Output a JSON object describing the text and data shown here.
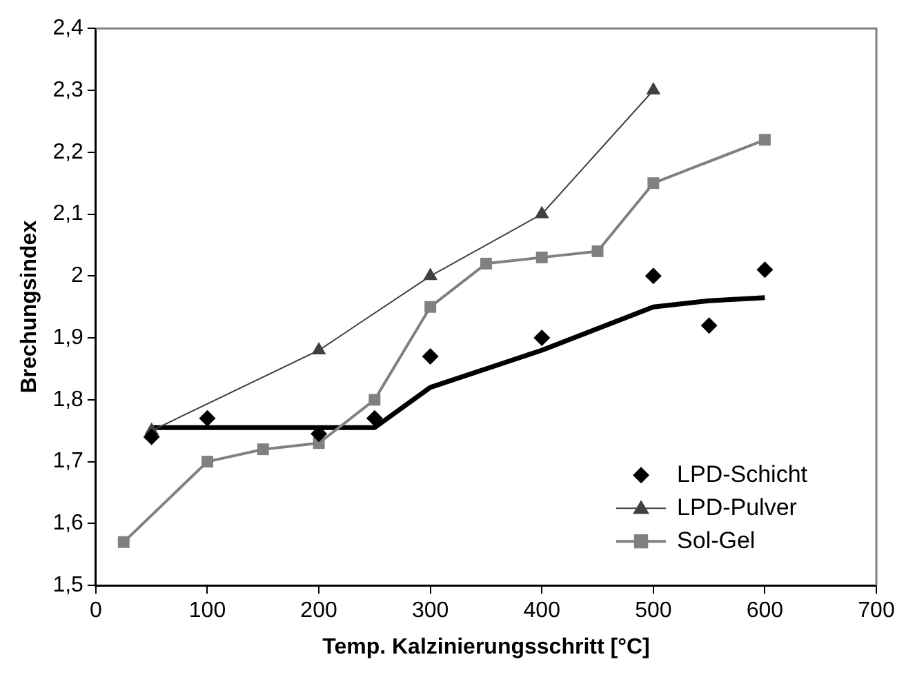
{
  "chart_data": {
    "type": "line",
    "xlabel": "Temp. Kalzinierungsschritt [°C]",
    "ylabel": "Brechungsindex",
    "xlim": [
      0,
      700
    ],
    "xticks": [
      0,
      100,
      200,
      300,
      400,
      500,
      600,
      700
    ],
    "ylim": [
      1.5,
      2.4
    ],
    "yticks": [
      {
        "value": 1.5,
        "label": "1,5"
      },
      {
        "value": 1.6,
        "label": "1,6"
      },
      {
        "value": 1.7,
        "label": "1,7"
      },
      {
        "value": 1.8,
        "label": "1,8"
      },
      {
        "value": 1.9,
        "label": "1,9"
      },
      2,
      {
        "value": 2.1,
        "label": "2,1"
      },
      {
        "value": 2.2,
        "label": "2,2"
      },
      {
        "value": 2.3,
        "label": "2,3"
      },
      {
        "value": 2.4,
        "label": "2,4"
      }
    ],
    "grid": false,
    "legend": "bottom right",
    "series": [
      {
        "name": "LPD-Schicht",
        "type": "scatter",
        "marker": "diamond",
        "color": "#000000",
        "x": [
          50,
          100,
          200,
          250,
          300,
          400,
          500,
          550,
          600
        ],
        "values": [
          1.74,
          1.77,
          1.745,
          1.77,
          1.87,
          1.9,
          2.0,
          1.92,
          2.01
        ]
      },
      {
        "name": "LPD-Pulver",
        "type": "line",
        "marker": "triangle",
        "color": "#404040",
        "x": [
          50,
          200,
          300,
          400,
          500
        ],
        "values": [
          1.75,
          1.88,
          2.0,
          2.1,
          2.3
        ]
      },
      {
        "name": "Sol-Gel",
        "type": "line",
        "marker": "square",
        "color": "#808080",
        "x": [
          25,
          100,
          150,
          200,
          250,
          300,
          350,
          400,
          450,
          500,
          600
        ],
        "values": [
          1.57,
          1.7,
          1.72,
          1.73,
          1.8,
          1.95,
          2.02,
          2.03,
          2.04,
          2.15,
          2.22
        ]
      },
      {
        "type": "line",
        "marker": "none",
        "color": "#000000",
        "x": [
          50,
          250,
          300,
          400,
          500,
          550,
          600
        ],
        "values": [
          1.755,
          1.755,
          1.82,
          1.88,
          1.95,
          1.96,
          1.965
        ]
      }
    ]
  }
}
